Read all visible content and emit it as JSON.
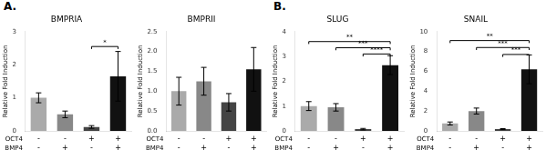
{
  "chart_data": [
    {
      "type": "bar",
      "title": "BMPRIA",
      "ylabel": "Relative Fold Induction",
      "categories": [
        null,
        null,
        null,
        null
      ],
      "values": [
        1.0,
        0.5,
        0.12,
        1.65
      ],
      "errors": [
        0.15,
        0.1,
        0.04,
        0.75
      ],
      "colors": [
        "#aaaaaa",
        "#888888",
        "#444444",
        "#111111"
      ],
      "ylim": [
        0,
        3
      ],
      "yticks": [
        0,
        1,
        2,
        3
      ],
      "grid": false,
      "tick_labels": "y",
      "annotations": [
        {
          "text": "A."
        },
        {
          "text": "OCT4",
          "values": [
            "-",
            "-",
            "+",
            "+"
          ]
        },
        {
          "text": "BMP4",
          "values": [
            "-",
            "+",
            "-",
            "+"
          ]
        },
        {
          "text": "*",
          "x1": 2,
          "x2": 3,
          "y": 2.55
        }
      ]
    },
    {
      "type": "bar",
      "title": "BMPRII",
      "ylabel": "Relative Fold Induction",
      "categories": [
        null,
        null,
        null,
        null
      ],
      "values": [
        1.0,
        1.25,
        0.72,
        1.55
      ],
      "errors": [
        0.35,
        0.35,
        0.22,
        0.55
      ],
      "colors": [
        "#aaaaaa",
        "#888888",
        "#444444",
        "#111111"
      ],
      "ylim": [
        0.0,
        2.5
      ],
      "yticks": [
        {
          "value": 0,
          "label": "0.0"
        },
        0.5,
        {
          "value": 1,
          "label": "1.0"
        },
        1.5,
        {
          "value": 2,
          "label": "2.0"
        },
        2.5
      ],
      "grid": false,
      "tick_labels": "y",
      "annotations": [
        {
          "text": "OCT4",
          "values": [
            "-",
            "-",
            "+",
            "+"
          ]
        },
        {
          "text": "BMP4",
          "values": [
            "-",
            "+",
            "-",
            "+"
          ]
        }
      ]
    },
    {
      "type": "bar",
      "title": "SLUG",
      "ylabel": "Relative Fold Induction",
      "categories": [
        null,
        null,
        null,
        null
      ],
      "values": [
        1.0,
        0.95,
        0.07,
        2.65
      ],
      "errors": [
        0.18,
        0.15,
        0.03,
        0.38
      ],
      "colors": [
        "#aaaaaa",
        "#888888",
        "#444444",
        "#111111"
      ],
      "ylim": [
        0,
        4
      ],
      "yticks": [
        0,
        1,
        2,
        3,
        4
      ],
      "grid": false,
      "tick_labels": "y",
      "annotations": [
        {
          "text": "B."
        },
        {
          "text": "OCT4",
          "values": [
            "-",
            "-",
            "+",
            "+"
          ]
        },
        {
          "text": "BMP4",
          "values": [
            "-",
            "+",
            "-",
            "+"
          ]
        },
        {
          "text": "**",
          "x1": 0,
          "x2": 3,
          "y": 3.6
        },
        {
          "text": "***",
          "x1": 1,
          "x2": 3,
          "y": 3.35
        },
        {
          "text": "****",
          "x1": 2,
          "x2": 3,
          "y": 3.1
        }
      ]
    },
    {
      "type": "bar",
      "title": "SNAIL",
      "ylabel": "Relative Fold Induction",
      "categories": [
        null,
        null,
        null,
        null
      ],
      "values": [
        0.75,
        2.0,
        0.18,
        6.2
      ],
      "errors": [
        0.15,
        0.3,
        0.05,
        1.45
      ],
      "colors": [
        "#aaaaaa",
        "#888888",
        "#444444",
        "#111111"
      ],
      "ylim": [
        0,
        10
      ],
      "yticks": [
        0,
        2,
        4,
        6,
        8,
        10
      ],
      "grid": false,
      "tick_labels": "y",
      "annotations": [
        {
          "text": "OCT4",
          "values": [
            "-",
            "-",
            "+",
            "+"
          ]
        },
        {
          "text": "BMP4",
          "values": [
            "-",
            "+",
            "-",
            "+"
          ]
        },
        {
          "text": "**",
          "x1": 0,
          "x2": 3,
          "y": 9.1
        },
        {
          "text": "***",
          "x1": 1,
          "x2": 3,
          "y": 8.4
        },
        {
          "text": "***",
          "x1": 2,
          "x2": 3,
          "y": 7.7
        }
      ]
    }
  ]
}
